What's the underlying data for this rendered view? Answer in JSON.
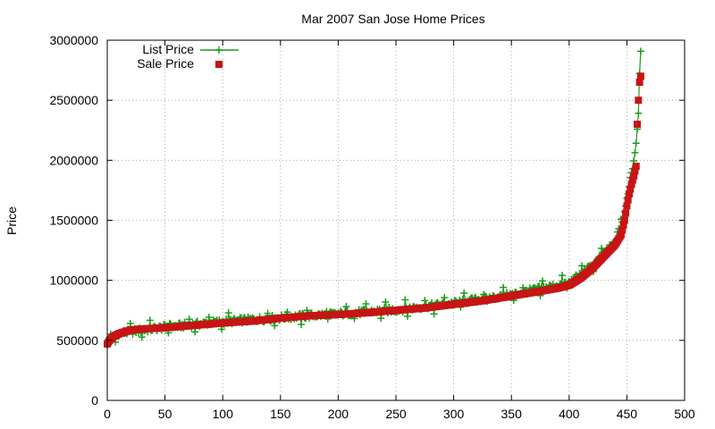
{
  "chart_data": {
    "type": "scatter",
    "title": "Mar 2007 San Jose Home Prices",
    "xlabel": "",
    "ylabel": "Price",
    "xlim": [
      0,
      500
    ],
    "ylim": [
      0,
      3000000
    ],
    "x_ticks": [
      0,
      50,
      100,
      150,
      200,
      250,
      300,
      350,
      400,
      450,
      500
    ],
    "y_ticks": [
      0,
      500000,
      1000000,
      1500000,
      2000000,
      2500000,
      3000000
    ],
    "x_tick_labels": [
      "0",
      "50",
      "100",
      "150",
      "200",
      "250",
      "300",
      "350",
      "400",
      "450",
      "500"
    ],
    "y_tick_labels": [
      "0",
      "500000",
      "1000000",
      "1500000",
      "2000000",
      "2500000",
      "3000000"
    ],
    "grid": true,
    "legend_position": "top-left",
    "sale_curve_points": [
      [
        0,
        470000
      ],
      [
        2,
        500000
      ],
      [
        5,
        530000
      ],
      [
        10,
        555000
      ],
      [
        15,
        570000
      ],
      [
        20,
        585000
      ],
      [
        30,
        595000
      ],
      [
        50,
        605000
      ],
      [
        75,
        625000
      ],
      [
        100,
        645000
      ],
      [
        125,
        660000
      ],
      [
        150,
        685000
      ],
      [
        175,
        705000
      ],
      [
        200,
        715000
      ],
      [
        225,
        730000
      ],
      [
        250,
        750000
      ],
      [
        275,
        770000
      ],
      [
        300,
        800000
      ],
      [
        325,
        830000
      ],
      [
        350,
        870000
      ],
      [
        375,
        910000
      ],
      [
        390,
        935000
      ],
      [
        400,
        960000
      ],
      [
        410,
        1020000
      ],
      [
        420,
        1100000
      ],
      [
        430,
        1200000
      ],
      [
        440,
        1300000
      ],
      [
        445,
        1380000
      ],
      [
        448,
        1500000
      ],
      [
        450,
        1620000
      ],
      [
        452,
        1720000
      ],
      [
        454,
        1800000
      ],
      [
        456,
        1870000
      ],
      [
        458,
        1950000
      ],
      [
        459,
        2300000
      ],
      [
        460,
        2500000
      ],
      [
        461,
        2650000
      ],
      [
        462,
        2700000
      ]
    ],
    "list_curve_points": [
      [
        0,
        480000
      ],
      [
        10,
        560000
      ],
      [
        50,
        610000
      ],
      [
        100,
        655000
      ],
      [
        150,
        690000
      ],
      [
        200,
        720000
      ],
      [
        250,
        755000
      ],
      [
        300,
        810000
      ],
      [
        350,
        880000
      ],
      [
        400,
        980000
      ],
      [
        420,
        1120000
      ],
      [
        440,
        1320000
      ],
      [
        448,
        1550000
      ],
      [
        452,
        1800000
      ],
      [
        456,
        2000000
      ],
      [
        458,
        2150000
      ],
      [
        460,
        2400000
      ],
      [
        461,
        2750000
      ],
      [
        462,
        2850000
      ]
    ],
    "series": [
      {
        "name": "List Price",
        "color": "#1a9c1a",
        "marker": "plus"
      },
      {
        "name": "Sale Price",
        "color": "#c81414",
        "marker": "square"
      }
    ]
  }
}
